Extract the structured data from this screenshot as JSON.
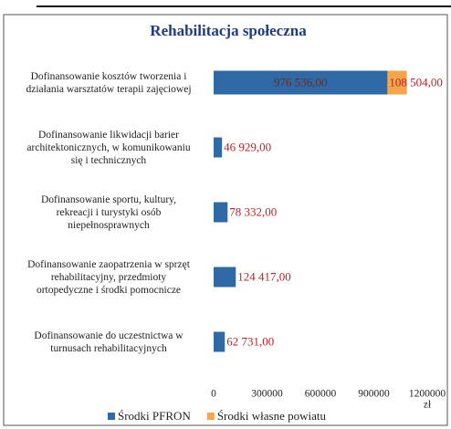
{
  "chart_data": {
    "type": "hbar_stacked",
    "title": "Rehabilitacja społeczna",
    "categories": [
      "Dofinansowanie kosztów tworzenia i\ndziałania warsztatów terapii zajęciowej",
      "Dofinansowanie likwidacji barier\narchitektonicznych, w komunikowaniu\nsię i technicznych",
      "Dofinansowanie sportu, kultury,\nrekreacji i turystyki osób\nniepełnosprawnych",
      "Dofinansowanie zaopatrzenia w sprzęt\nrehabilitacyjny, przedmioty\nortopedyczne i środki pomocnicze",
      "Dofinansowanie do uczestnictwa w\nturnusach rehabilitacyjnych"
    ],
    "series": [
      {
        "name": "Środki PFRON",
        "color": "#2f6aa6",
        "values": [
          976536,
          46929,
          78332,
          124417,
          62731
        ],
        "value_labels": [
          "976 536,00",
          "46 929,00",
          "78 332,00",
          "124 417,00",
          "62 731,00"
        ]
      },
      {
        "name": "Środki własne powiatu",
        "color": "#f5a64a",
        "values": [
          108504,
          null,
          null,
          null,
          null
        ],
        "value_labels": [
          "108 504,00",
          null,
          null,
          null,
          null
        ]
      }
    ],
    "xlim": [
      0,
      1200000
    ],
    "xticks": [
      0,
      300000,
      600000,
      900000,
      1200000
    ],
    "xlabel": "zł",
    "grid": false
  }
}
